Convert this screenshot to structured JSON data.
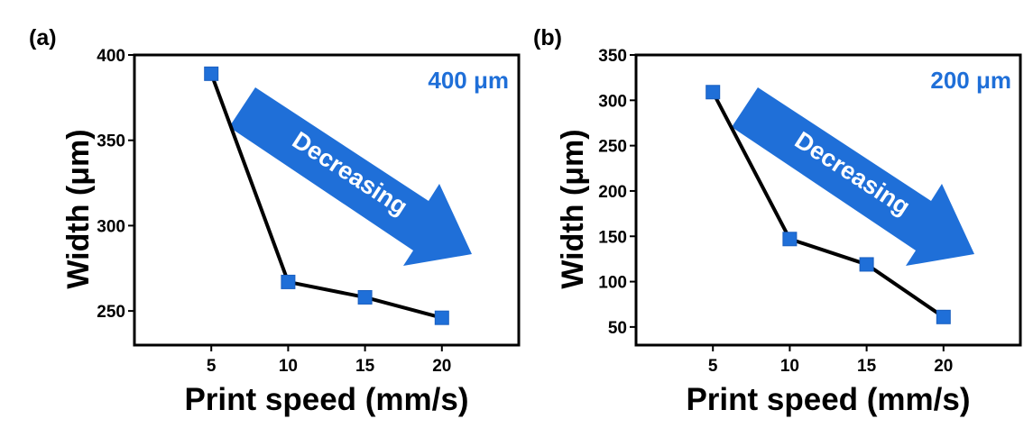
{
  "colors": {
    "marker": "#1f6fd8",
    "arrow": "#1f6fd8",
    "annotation": "#1f6fd8",
    "line": "#000000",
    "arrow_text": "#ffffff"
  },
  "chart_data": [
    {
      "type": "line",
      "panel_label": "(a)",
      "title": "",
      "xlabel": "Print speed (mm/s)",
      "ylabel": "Width (μm)",
      "x": [
        5,
        10,
        15,
        20
      ],
      "series": [
        {
          "name": "400 μm",
          "values": [
            389,
            267,
            258,
            246
          ]
        }
      ],
      "xlim": [
        0,
        25
      ],
      "ylim": [
        230,
        400
      ],
      "xticks": [
        5,
        10,
        15,
        20
      ],
      "yticks": [
        250,
        300,
        350,
        400
      ],
      "annotations": [
        "400 μm"
      ],
      "arrow_label": "Decreasing",
      "grid": false
    },
    {
      "type": "line",
      "panel_label": "(b)",
      "title": "",
      "xlabel": "Print speed (mm/s)",
      "ylabel": "Width (μm)",
      "x": [
        5,
        10,
        15,
        20
      ],
      "series": [
        {
          "name": "200 μm",
          "values": [
            309,
            147,
            119,
            61
          ]
        }
      ],
      "xlim": [
        0,
        25
      ],
      "ylim": [
        30,
        350
      ],
      "xticks": [
        5,
        10,
        15,
        20
      ],
      "yticks": [
        50,
        100,
        150,
        200,
        250,
        300,
        350
      ],
      "annotations": [
        "200 μm"
      ],
      "arrow_label": "Decreasing",
      "grid": false
    }
  ]
}
